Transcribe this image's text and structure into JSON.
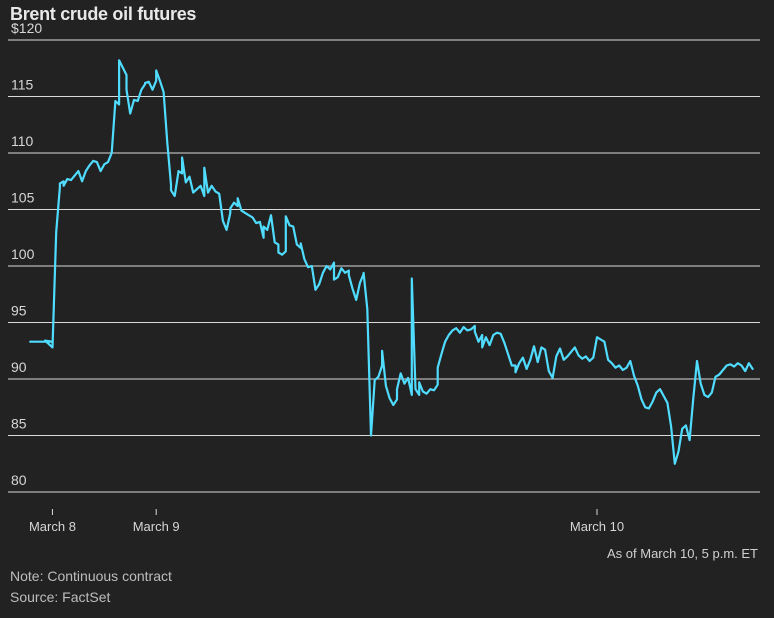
{
  "title": "Brent crude oil futures",
  "as_of": "As of March 10, 5 p.m. ET",
  "note": "Note: Continuous contract",
  "source": "Source: FactSet",
  "colors": {
    "line": "#4fdcff",
    "grid": "#d9d9d9",
    "background": "#222222"
  },
  "chart_data": {
    "type": "line",
    "title": "Brent crude oil futures",
    "xlabel": "",
    "ylabel": "",
    "ylim": [
      78.5,
      120
    ],
    "yticks": [
      120,
      115,
      110,
      105,
      100,
      95,
      90,
      85,
      80
    ],
    "ytick_labels": [
      "$120",
      "115",
      "110",
      "105",
      "100",
      "95",
      "90",
      "85",
      "80"
    ],
    "xlim": [
      -0.12,
      1.91
    ],
    "xticks": [
      0,
      0.28,
      1.47
    ],
    "xtick_labels": [
      "March 8",
      "March 9",
      "March 10"
    ],
    "x_units": "days since March 8, 00:00 (approximate)",
    "series": [
      {
        "name": "Brent crude oil futures",
        "x": [
          -0.06,
          0.0,
          -0.02,
          0.0,
          0.01,
          0.02,
          0.02,
          0.03,
          0.03,
          0.04,
          0.05,
          0.06,
          0.07,
          0.08,
          0.09,
          0.1,
          0.11,
          0.12,
          0.13,
          0.14,
          0.15,
          0.16,
          0.17,
          0.18,
          0.18,
          0.2,
          0.2,
          0.2,
          0.21,
          0.22,
          0.23,
          0.24,
          0.25,
          0.25,
          0.26,
          0.27,
          0.28,
          0.28,
          0.29,
          0.3,
          0.31,
          0.32,
          0.32,
          0.33,
          0.34,
          0.34,
          0.35,
          0.35,
          0.36,
          0.37,
          0.38,
          0.39,
          0.4,
          0.41,
          0.41,
          0.42,
          0.43,
          0.44,
          0.45,
          0.46,
          0.47,
          0.48,
          0.48,
          0.49,
          0.5,
          0.5,
          0.51,
          0.52,
          0.53,
          0.54,
          0.55,
          0.56,
          0.57,
          0.57,
          0.58,
          0.59,
          0.6,
          0.61,
          0.61,
          0.62,
          0.63,
          0.63,
          0.64,
          0.65,
          0.66,
          0.67,
          0.67,
          0.68,
          0.69,
          0.7,
          0.71,
          0.72,
          0.73,
          0.74,
          0.75,
          0.76,
          0.76,
          0.77,
          0.78,
          0.79,
          0.8,
          0.8,
          0.81,
          0.82,
          0.83,
          0.84,
          0.84,
          0.85,
          0.86,
          0.87,
          0.88,
          0.89,
          0.89,
          0.9,
          0.91,
          0.92,
          0.93,
          0.93,
          0.94,
          0.95,
          0.96,
          0.97,
          0.97,
          0.98,
          0.99,
          0.99,
          1.0,
          1.01,
          1.02,
          1.03,
          1.04,
          1.04,
          1.05,
          1.06,
          1.07,
          1.08,
          1.09,
          1.1,
          1.11,
          1.12,
          1.13,
          1.14,
          1.14,
          1.15,
          1.16,
          1.16,
          1.17,
          1.18,
          1.19,
          1.2,
          1.21,
          1.22,
          1.23,
          1.24,
          1.25,
          1.25,
          1.26,
          1.27,
          1.28,
          1.29,
          1.3,
          1.31,
          1.32,
          1.33,
          1.34,
          1.35,
          1.36,
          1.37,
          1.38,
          1.39,
          1.4,
          1.41,
          1.42,
          1.43,
          1.44,
          1.45,
          1.46,
          1.47,
          1.48,
          1.49,
          1.5,
          1.51,
          1.52,
          1.53,
          1.54,
          1.55,
          1.56,
          1.57,
          1.58,
          1.59,
          1.6,
          1.61,
          1.62,
          1.63,
          1.64,
          1.65,
          1.66,
          1.67,
          1.68,
          1.69,
          1.7,
          1.71,
          1.72,
          1.73,
          1.74,
          1.75,
          1.76,
          1.77,
          1.78,
          1.79,
          1.8,
          1.81,
          1.82,
          1.83,
          1.84,
          1.85,
          1.86,
          1.87,
          1.88,
          1.89
        ],
        "values": [
          93.3,
          93.3,
          93.4,
          92.8,
          103.0,
          107.0,
          107.3,
          107.5,
          107.1,
          107.7,
          107.6,
          108.0,
          108.4,
          107.5,
          108.4,
          108.9,
          109.3,
          109.2,
          108.4,
          109.0,
          109.2,
          110.0,
          114.6,
          114.3,
          118.2,
          116.9,
          116.6,
          115.6,
          113.5,
          114.7,
          114.6,
          115.6,
          116.1,
          116.2,
          116.3,
          115.6,
          116.4,
          117.3,
          116.4,
          115.4,
          110.9,
          107.2,
          106.7,
          106.2,
          108.3,
          108.4,
          108.2,
          109.6,
          107.4,
          107.9,
          106.5,
          106.8,
          107.1,
          106.2,
          108.7,
          106.5,
          107.1,
          106.6,
          106.4,
          104.0,
          103.2,
          104.7,
          105.1,
          105.6,
          105.3,
          106.0,
          104.9,
          104.7,
          104.5,
          104.3,
          103.8,
          103.9,
          102.5,
          103.5,
          103.2,
          104.5,
          102.1,
          101.9,
          101.2,
          101.0,
          101.3,
          104.4,
          103.6,
          103.5,
          101.9,
          101.6,
          102.0,
          100.6,
          99.9,
          100.0,
          97.9,
          98.4,
          99.4,
          100.0,
          99.7,
          100.3,
          98.8,
          99.0,
          99.8,
          99.4,
          99.6,
          99.2,
          98.0,
          97.0,
          98.5,
          99.3,
          99.4,
          96.2,
          85.0,
          89.9,
          90.2,
          91.2,
          92.5,
          89.4,
          88.3,
          87.7,
          88.2,
          89.1,
          90.5,
          89.6,
          90.1,
          88.6,
          98.9,
          89.1,
          88.6,
          89.7,
          88.9,
          88.7,
          89.1,
          89.0,
          89.5,
          91.0,
          92.2,
          93.3,
          93.9,
          94.3,
          94.5,
          94.1,
          94.6,
          94.3,
          94.4,
          94.7,
          94.2,
          93.3,
          93.9,
          92.8,
          93.7,
          93.0,
          93.9,
          94.1,
          94.0,
          93.2,
          92.2,
          91.2,
          91.2,
          90.6,
          91.4,
          91.9,
          90.9,
          91.7,
          92.9,
          91.5,
          92.8,
          92.6,
          90.7,
          90.1,
          92.0,
          92.7,
          91.7,
          92.0,
          92.4,
          92.8,
          92.1,
          91.8,
          92.0,
          91.6,
          91.9,
          93.7,
          93.5,
          93.3,
          91.7,
          91.4,
          91.0,
          91.2,
          90.8,
          91.0,
          91.6,
          90.3,
          89.4,
          88.2,
          87.5,
          87.4,
          88.0,
          88.8,
          89.1,
          88.5,
          87.9,
          85.8,
          82.5,
          83.6,
          85.6,
          85.9,
          84.6,
          88.3,
          91.6,
          89.6,
          88.6,
          88.4,
          88.8,
          90.2,
          90.4,
          90.8,
          91.2,
          91.3,
          91.1,
          91.4,
          91.2,
          90.7,
          91.4,
          90.9
        ]
      }
    ]
  }
}
